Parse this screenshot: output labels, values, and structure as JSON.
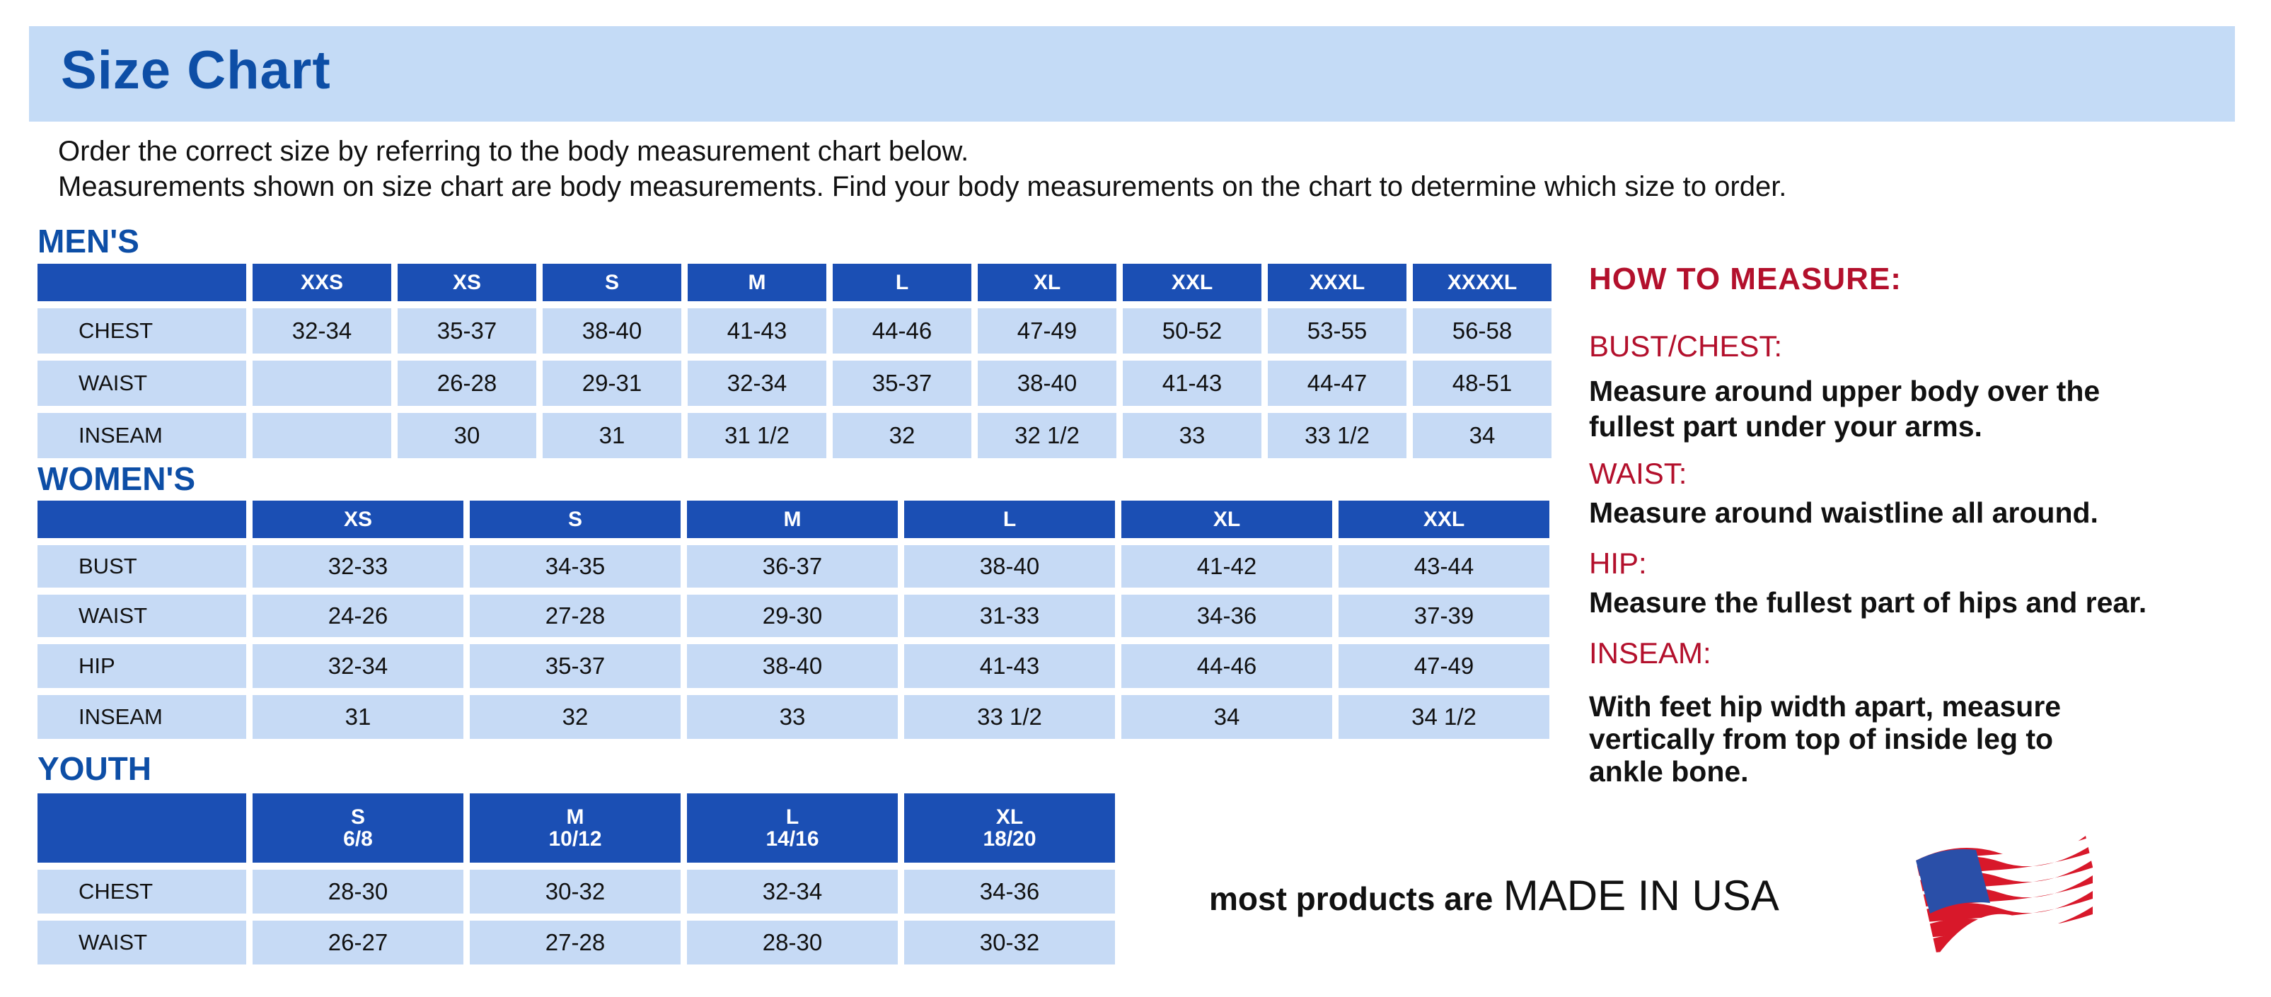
{
  "title": "Size Chart",
  "intro": [
    "Order the correct size by referring to the body measurement chart below.",
    "Measurements shown on size chart are body measurements.  Find your body measurements on the chart to determine which size to order."
  ],
  "mens": {
    "label": "MEN'S",
    "sizes": [
      "XXS",
      "XS",
      "S",
      "M",
      "L",
      "XL",
      "XXL",
      "XXXL",
      "XXXXL"
    ],
    "rows": [
      {
        "name": "CHEST",
        "values": [
          "32-34",
          "35-37",
          "38-40",
          "41-43",
          "44-46",
          "47-49",
          "50-52",
          "53-55",
          "56-58"
        ]
      },
      {
        "name": "WAIST",
        "values": [
          "",
          "26-28",
          "29-31",
          "32-34",
          "35-37",
          "38-40",
          "41-43",
          "44-47",
          "48-51"
        ]
      },
      {
        "name": "INSEAM",
        "values": [
          "",
          "30",
          "31",
          "31 1/2",
          "32",
          "32 1/2",
          "33",
          "33 1/2",
          "34"
        ]
      }
    ]
  },
  "womens": {
    "label": "WOMEN'S",
    "sizes": [
      "XS",
      "S",
      "M",
      "L",
      "XL",
      "XXL"
    ],
    "rows": [
      {
        "name": "BUST",
        "values": [
          "32-33",
          "34-35",
          "36-37",
          "38-40",
          "41-42",
          "43-44"
        ]
      },
      {
        "name": "WAIST",
        "values": [
          "24-26",
          "27-28",
          "29-30",
          "31-33",
          "34-36",
          "37-39"
        ]
      },
      {
        "name": "HIP",
        "values": [
          "32-34",
          "35-37",
          "38-40",
          "41-43",
          "44-46",
          "47-49"
        ]
      },
      {
        "name": "INSEAM",
        "values": [
          "31",
          "32",
          "33",
          "33 1/2",
          "34",
          "34 1/2"
        ]
      }
    ]
  },
  "youth": {
    "label": "YOUTH",
    "sizes": [
      "S",
      "M",
      "L",
      "XL"
    ],
    "size_ranges": [
      "6/8",
      "10/12",
      "14/16",
      "18/20"
    ],
    "rows": [
      {
        "name": "CHEST",
        "values": [
          "28-30",
          "30-32",
          "32-34",
          "34-36"
        ]
      },
      {
        "name": "WAIST",
        "values": [
          "26-27",
          "27-28",
          "28-30",
          "30-32"
        ]
      }
    ]
  },
  "how_to_measure": {
    "title": "HOW TO MEASURE:",
    "items": [
      {
        "heading": "BUST/CHEST:",
        "lines": [
          "Measure around upper body over the",
          "fullest part under your arms."
        ]
      },
      {
        "heading": "WAIST:",
        "lines": [
          "Measure around waistline all around."
        ]
      },
      {
        "heading": "HIP:",
        "lines": [
          "Measure the fullest part of hips and rear."
        ]
      },
      {
        "heading": "INSEAM:",
        "lines": [
          "With feet hip width apart, measure",
          "vertically from top of inside leg to",
          "ankle bone."
        ]
      }
    ]
  },
  "footer": {
    "prefix": "most products are",
    "emphasis": "MADE IN USA",
    "icon": "us-flag-icon"
  },
  "colors": {
    "title_blue": "#0d4ea6",
    "header_band": "#c4dbf6",
    "table_header": "#1b4fb4",
    "table_cell": "#c6daf5",
    "heading_red": "#b3102c"
  }
}
